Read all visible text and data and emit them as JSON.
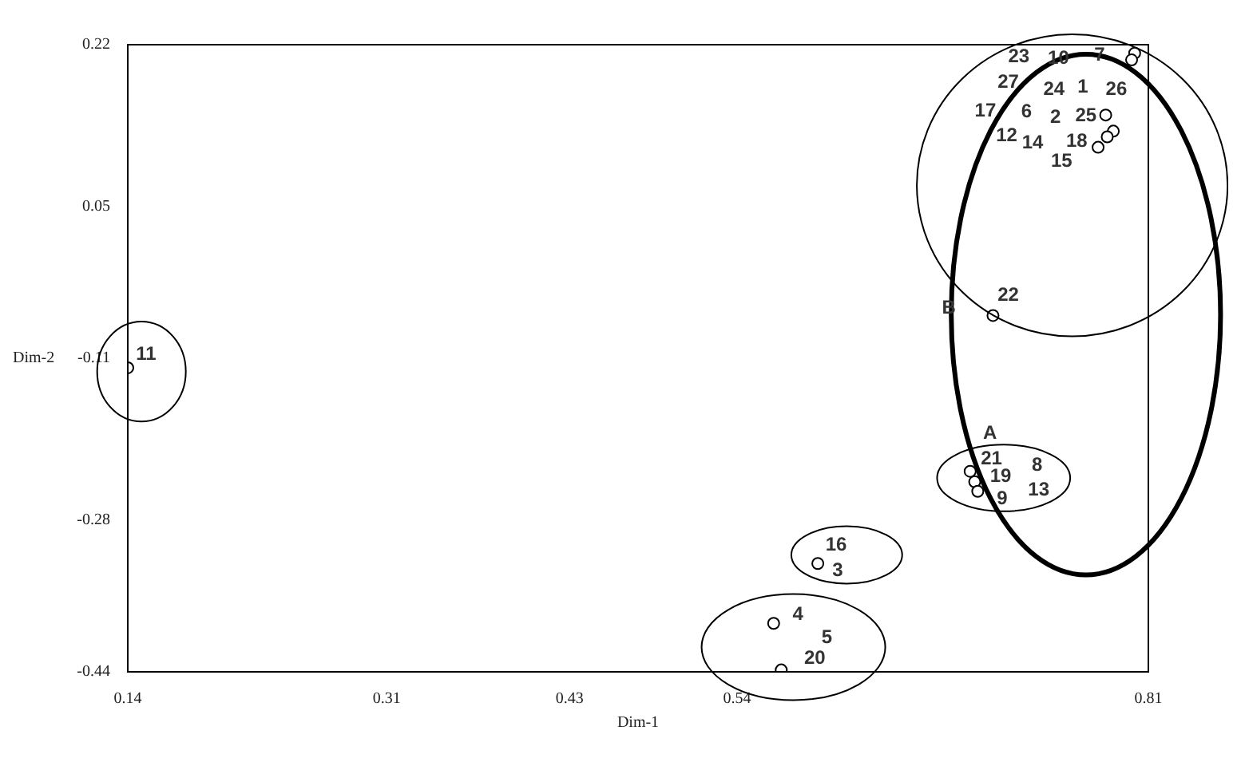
{
  "chart_data": {
    "type": "scatter",
    "xlabel": "Dim-1",
    "ylabel": "Dim-2",
    "xlim": [
      0.14,
      0.81
    ],
    "ylim": [
      -0.44,
      0.22
    ],
    "xticks": [
      0.14,
      0.31,
      0.43,
      0.54,
      0.81
    ],
    "yticks": [
      0.22,
      0.05,
      -0.11,
      -0.28,
      -0.44
    ],
    "series": [
      {
        "color": "#000000",
        "x": [
          0.801,
          0.799,
          0.782,
          0.787,
          0.783,
          0.777,
          0.708,
          0.693,
          0.696,
          0.698,
          0.593,
          0.564,
          0.569,
          0.14
        ],
        "values": [
          0.211,
          0.204,
          0.146,
          0.129,
          0.123,
          0.112,
          -0.065,
          -0.229,
          -0.24,
          -0.25,
          -0.326,
          -0.389,
          -0.438,
          -0.12
        ]
      }
    ],
    "marker": "circle",
    "grid": false,
    "legend": false,
    "annotations": [
      "23",
      "10",
      "7",
      "27",
      "24",
      "1",
      "26",
      "17",
      "6",
      "2",
      "25",
      "12",
      "14",
      "18",
      "15",
      "B",
      "22",
      "A",
      "21",
      "8",
      "19",
      "13",
      "9",
      "16",
      "3",
      "4",
      "5",
      "20",
      "11"
    ]
  }
}
